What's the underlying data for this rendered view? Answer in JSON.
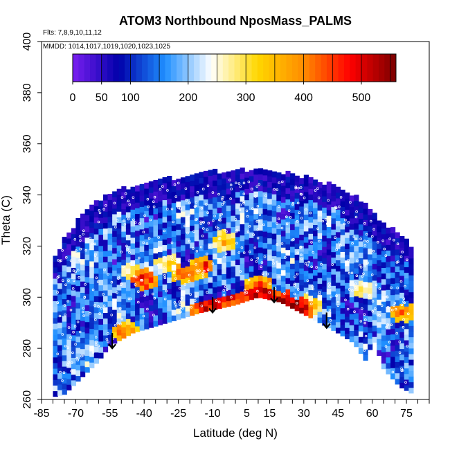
{
  "chart_data": {
    "type": "heatmap",
    "title": "ATOM3 Northbound NposMass_PALMS",
    "flights_note": "Flts: 7,8,9,10,11,12",
    "dates_note": "MMDD: 1014,1017,1019,1020,1023,1025",
    "xlabel": "Latitude (deg N)",
    "ylabel": "Theta (C)",
    "x_ticks": [
      "-85",
      "-70",
      "-55",
      "-40",
      "-25",
      "-10",
      "5",
      "15",
      "30",
      "45",
      "60",
      "75"
    ],
    "x_tick_values": [
      -85,
      -70,
      -55,
      -40,
      -25,
      -10,
      5,
      15,
      30,
      45,
      60,
      75
    ],
    "y_ticks": [
      "260",
      "280",
      "300",
      "320",
      "340",
      "360",
      "380",
      "400"
    ],
    "y_tick_values": [
      260,
      280,
      300,
      320,
      340,
      360,
      380,
      400
    ],
    "xlim": [
      -85,
      85
    ],
    "ylim": [
      260,
      400
    ],
    "colorbar": {
      "range": [
        0,
        560
      ],
      "tick_labels": [
        "0",
        "50",
        "100",
        "200",
        "300",
        "400",
        "500"
      ],
      "tick_values": [
        0,
        50,
        100,
        200,
        300,
        400,
        500
      ],
      "color_stops": [
        "#7a1ff0",
        "#0000aa",
        "#1f8fff",
        "#ffffff",
        "#ffd700",
        "#ff8c00",
        "#ff0000",
        "#7a0000"
      ]
    },
    "upper_boundary": [
      {
        "lat": -80,
        "theta": 313
      },
      {
        "lat": -75,
        "theta": 322
      },
      {
        "lat": -70,
        "theta": 328
      },
      {
        "lat": -60,
        "theta": 337
      },
      {
        "lat": -50,
        "theta": 341
      },
      {
        "lat": -40,
        "theta": 344
      },
      {
        "lat": -25,
        "theta": 346
      },
      {
        "lat": -10,
        "theta": 348
      },
      {
        "lat": 0,
        "theta": 349
      },
      {
        "lat": 10,
        "theta": 349
      },
      {
        "lat": 20,
        "theta": 348
      },
      {
        "lat": 30,
        "theta": 346
      },
      {
        "lat": 45,
        "theta": 342
      },
      {
        "lat": 55,
        "theta": 337
      },
      {
        "lat": 65,
        "theta": 328
      },
      {
        "lat": 75,
        "theta": 321
      },
      {
        "lat": 78,
        "theta": 317
      }
    ],
    "lower_boundary": [
      {
        "lat": -80,
        "theta": 261
      },
      {
        "lat": -75,
        "theta": 262
      },
      {
        "lat": -68,
        "theta": 268
      },
      {
        "lat": -60,
        "theta": 275
      },
      {
        "lat": -55,
        "theta": 281
      },
      {
        "lat": -45,
        "theta": 286
      },
      {
        "lat": -30,
        "theta": 290
      },
      {
        "lat": -15,
        "theta": 294
      },
      {
        "lat": 0,
        "theta": 297
      },
      {
        "lat": 10,
        "theta": 300
      },
      {
        "lat": 20,
        "theta": 298
      },
      {
        "lat": 35,
        "theta": 291
      },
      {
        "lat": 45,
        "theta": 286
      },
      {
        "lat": 52,
        "theta": 282
      },
      {
        "lat": 58,
        "theta": 274
      },
      {
        "lat": 60,
        "theta": 285
      },
      {
        "lat": 65,
        "theta": 272
      },
      {
        "lat": 72,
        "theta": 265
      },
      {
        "lat": 78,
        "theta": 262
      }
    ],
    "arrows": [
      {
        "lat": -54,
        "theta_from": 286,
        "theta_to": 280
      },
      {
        "lat": -10,
        "theta_from": 300,
        "theta_to": 294
      },
      {
        "lat": 17,
        "theta_from": 304,
        "theta_to": 298
      },
      {
        "lat": 40,
        "theta_from": 294,
        "theta_to": 288
      }
    ],
    "hot_regions": [
      {
        "lat": -45,
        "theta": 310,
        "value": 300
      },
      {
        "lat": -40,
        "theta": 307,
        "value": 480
      },
      {
        "lat": -30,
        "theta": 313,
        "value": 320
      },
      {
        "lat": -22,
        "theta": 309,
        "value": 430
      },
      {
        "lat": -15,
        "theta": 312,
        "value": 470
      },
      {
        "lat": -5,
        "theta": 322,
        "value": 360
      },
      {
        "lat": 10,
        "theta": 305,
        "value": 440
      },
      {
        "lat": 12,
        "theta": 301,
        "value": 520
      },
      {
        "lat": 20,
        "theta": 299,
        "value": 500
      },
      {
        "lat": 27,
        "theta": 296,
        "value": 540
      },
      {
        "lat": 32,
        "theta": 297,
        "value": 350
      },
      {
        "lat": -48,
        "theta": 287,
        "value": 420
      },
      {
        "lat": 73,
        "theta": 294,
        "value": 400
      },
      {
        "lat": 55,
        "theta": 303,
        "value": 300
      }
    ],
    "grid": false,
    "legend": "colorbar top"
  }
}
